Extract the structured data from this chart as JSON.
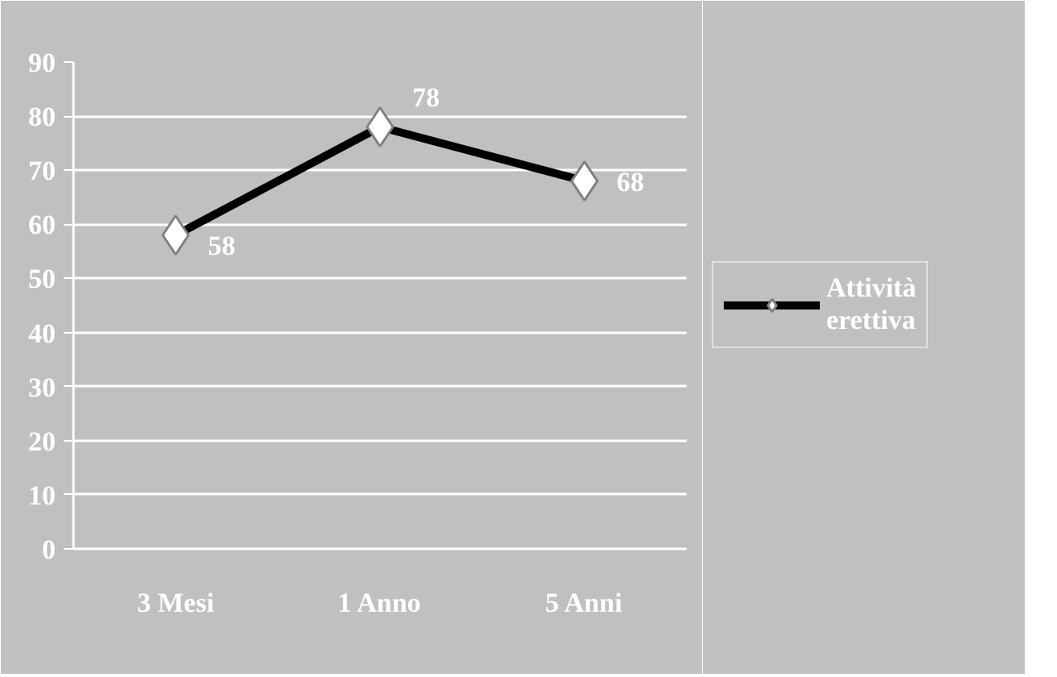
{
  "chart_data": {
    "type": "line",
    "categories": [
      "3 Mesi",
      "1 Anno",
      "5 Anni"
    ],
    "series": [
      {
        "name": "Attività erettiva",
        "color": "#000000",
        "values": [
          58,
          78,
          68
        ]
      }
    ],
    "ylim": [
      0,
      90
    ],
    "yticks": [
      0,
      10,
      20,
      30,
      40,
      50,
      60,
      70,
      80,
      90
    ],
    "grid": "y",
    "legend": "right",
    "marker": "diamond",
    "line_style": "solid",
    "data_labels": true
  }
}
